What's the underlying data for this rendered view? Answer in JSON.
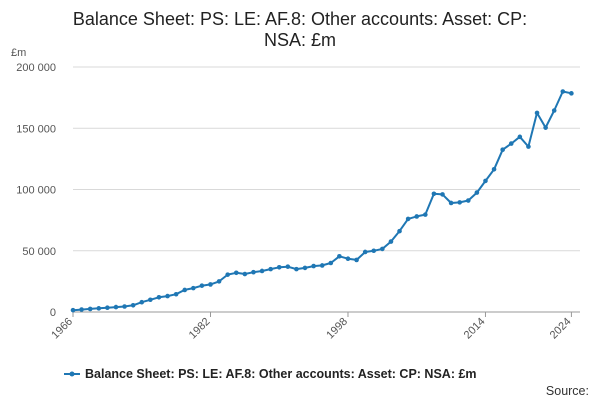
{
  "chart_data": {
    "type": "line",
    "title_lines": [
      "Balance Sheet: PS: LE: AF.8: Other accounts: Asset: CP:",
      "NSA: £m"
    ],
    "ylabel": "£m",
    "ylim": [
      0,
      200000
    ],
    "y_ticks": [
      0,
      50000,
      100000,
      150000,
      200000
    ],
    "y_tick_labels": [
      "0",
      "50 000",
      "100 000",
      "150 000",
      "200 000"
    ],
    "xlim": [
      1966,
      2025
    ],
    "x_ticks": [
      1966,
      1982,
      1998,
      2014,
      2024
    ],
    "x_tick_labels": [
      "1966",
      "1982",
      "1998",
      "2014",
      "2024"
    ],
    "grid": true,
    "legend_position": "bottom",
    "series": [
      {
        "name": "Balance Sheet: PS: LE: AF.8: Other accounts: Asset: CP: NSA: £m",
        "color": "#1f77b4",
        "x": [
          1966,
          1967,
          1968,
          1969,
          1970,
          1971,
          1972,
          1973,
          1974,
          1975,
          1976,
          1977,
          1978,
          1979,
          1980,
          1981,
          1982,
          1983,
          1984,
          1985,
          1986,
          1987,
          1988,
          1989,
          1990,
          1991,
          1992,
          1993,
          1994,
          1995,
          1996,
          1997,
          1998,
          1999,
          2000,
          2001,
          2002,
          2003,
          2004,
          2005,
          2006,
          2007,
          2008,
          2009,
          2010,
          2011,
          2012,
          2013,
          2014,
          2015,
          2016,
          2017,
          2018,
          2019,
          2020,
          2021,
          2022,
          2023,
          2024
        ],
        "y": [
          1500,
          2000,
          2500,
          3000,
          3500,
          4000,
          4500,
          5500,
          8000,
          10000,
          12000,
          13000,
          14500,
          18000,
          19500,
          21500,
          22500,
          25000,
          30500,
          32000,
          31000,
          32500,
          33500,
          35000,
          36500,
          37000,
          35000,
          36000,
          37500,
          38000,
          40000,
          45500,
          43500,
          42500,
          49000,
          50000,
          51500,
          57500,
          66000,
          76000,
          78000,
          79500,
          96500,
          96000,
          89000,
          89500,
          91000,
          97500,
          107000,
          116500,
          132500,
          137500,
          143000,
          135000,
          162500,
          150500,
          164500,
          180000,
          178500
        ]
      }
    ],
    "source_label": "Source:"
  }
}
